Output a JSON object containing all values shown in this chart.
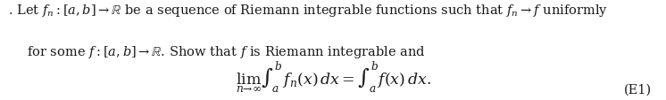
{
  "text_line1": ". Let $f_n : [a, b] \\rightarrow \\mathbb{R}$ be a sequence of Riemann integrable functions such that $f_n \\rightarrow f$ uniformly",
  "text_line2": "for some $f : [a, b] \\rightarrow \\mathbb{R}$. Show that $f$ is Riemann integrable and",
  "equation": "$\\lim_{n \\rightarrow \\infty} \\int_a^b f_n(x)\\, dx = \\int_a^b f(x)\\, dx.$",
  "label": "(E1)",
  "bg_color": "#ffffff",
  "text_color": "#1a1a1a",
  "fontsize_text": 10.5,
  "fontsize_eq": 12.5
}
